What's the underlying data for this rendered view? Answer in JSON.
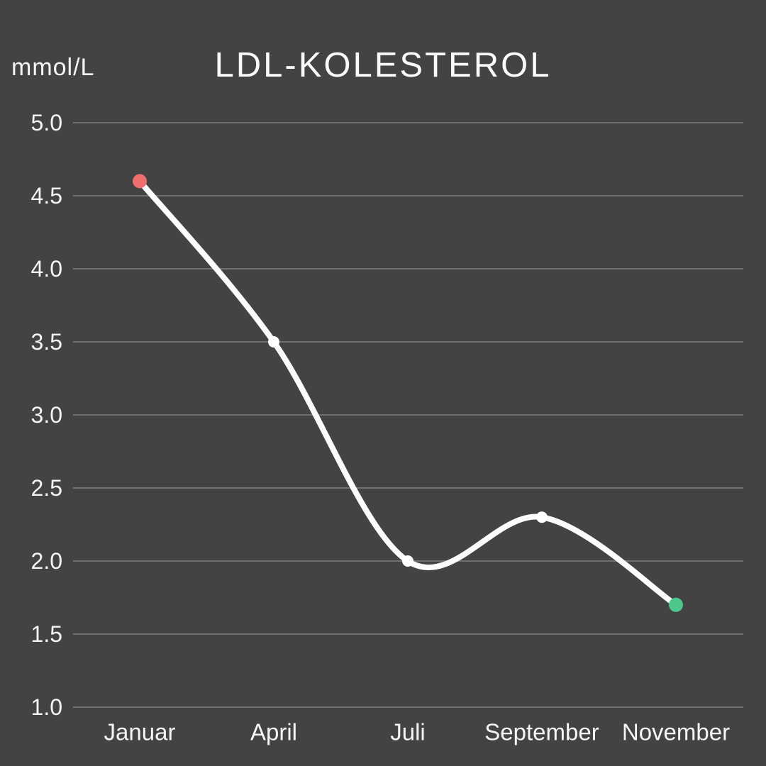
{
  "colors": {
    "background": "#434343",
    "gridline": "#707070",
    "line": "#fbfbfb",
    "text": "#f5f5f5",
    "point_start": "#ee6e6e",
    "point_mid": "#ffffff",
    "point_end": "#4dc78c"
  },
  "chart_data": {
    "type": "line",
    "title": "LDL-KOLESTEROL",
    "ylabel": "mmol/L",
    "xlabel": "",
    "categories": [
      "Januar",
      "April",
      "Juli",
      "September",
      "November"
    ],
    "values": [
      4.6,
      3.5,
      2.0,
      2.3,
      1.7
    ],
    "point_colors": [
      "#ee6e6e",
      "#ffffff",
      "#ffffff",
      "#ffffff",
      "#4dc78c"
    ],
    "y_tick_labels": [
      "5.0",
      "4.5",
      "4.0",
      "3.5",
      "3.0",
      "2.5",
      "2.0",
      "1.5",
      "1.0"
    ],
    "y_ticks": [
      5.0,
      4.5,
      4.0,
      3.5,
      3.0,
      2.5,
      2.0,
      1.5,
      1.0
    ],
    "ylim": [
      1.0,
      5.0
    ],
    "grid": true,
    "legend": "none",
    "line_shape": "smooth-spline"
  }
}
